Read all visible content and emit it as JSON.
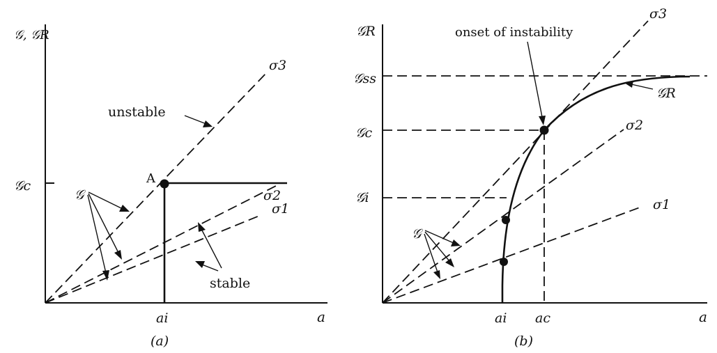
{
  "panel_a": {
    "caption": "(a)",
    "y_axis_label": "𝒢, 𝒢R",
    "x_axis_label": "a",
    "ytick_gc": "𝒢c",
    "xtick_ai": "ai",
    "point_label": "A",
    "sigma3": "σ3",
    "sigma2": "σ2",
    "sigma1": "σ1",
    "unstable": "unstable",
    "stable": "stable",
    "g_label": "𝒢"
  },
  "panel_b": {
    "caption": "(b)",
    "y_axis_label": "𝒢R",
    "x_axis_label": "a",
    "ytick_gss": "𝒢ss",
    "ytick_gc": "𝒢c",
    "ytick_gi": "𝒢i",
    "xtick_ai": "ai",
    "xtick_ac": "ac",
    "onset": "onset of instability",
    "curve_label": "𝒢R",
    "sigma3": "σ3",
    "sigma2": "σ2",
    "sigma1": "σ1",
    "g_label": "𝒢"
  }
}
